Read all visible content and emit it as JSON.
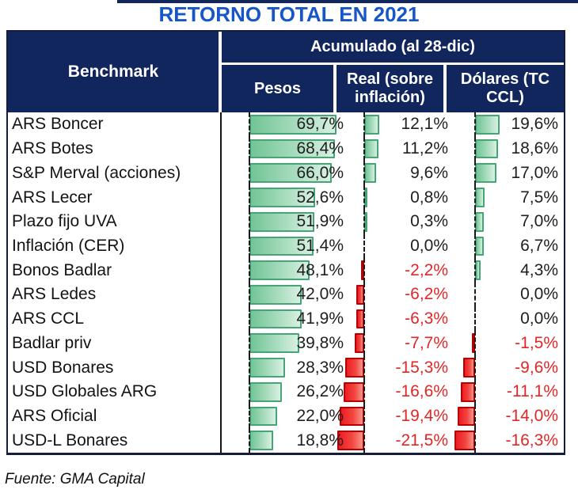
{
  "title": "RETORNO TOTAL EN 2021",
  "source": "Fuente: GMA Capital",
  "colors": {
    "title_blue": "#1656c8",
    "header_navy": "#12265e",
    "positive_bar": "#72c496",
    "positive_bar_border": "#46a577",
    "negative_bar": "#ee1c24",
    "negative_bar_border": "#b40000",
    "negative_text": "#e02728"
  },
  "table": {
    "benchmark_header": "Benchmark",
    "group_header": "Acumulado (al 28-dic)",
    "columns": [
      "Pesos",
      "Real (sobre inflación)",
      "Dólares (TC CCL)"
    ],
    "rows": [
      {
        "name": "ARS Boncer",
        "pesos": "69,7%",
        "real": "12,1%",
        "dolares": "19,6%",
        "pesos_v": 69.7,
        "real_v": 12.1,
        "dolares_v": 19.6
      },
      {
        "name": "ARS Botes",
        "pesos": "68,4%",
        "real": "11,2%",
        "dolares": "18,6%",
        "pesos_v": 68.4,
        "real_v": 11.2,
        "dolares_v": 18.6
      },
      {
        "name": "S&P Merval (acciones)",
        "pesos": "66,0%",
        "real": "9,6%",
        "dolares": "17,0%",
        "pesos_v": 66.0,
        "real_v": 9.6,
        "dolares_v": 17.0
      },
      {
        "name": "ARS Lecer",
        "pesos": "52,6%",
        "real": "0,8%",
        "dolares": "7,5%",
        "pesos_v": 52.6,
        "real_v": 0.8,
        "dolares_v": 7.5
      },
      {
        "name": "Plazo fijo UVA",
        "pesos": "51,9%",
        "real": "0,3%",
        "dolares": "7,0%",
        "pesos_v": 51.9,
        "real_v": 0.3,
        "dolares_v": 7.0
      },
      {
        "name": "Inflación (CER)",
        "pesos": "51,4%",
        "real": "0,0%",
        "dolares": "6,7%",
        "pesos_v": 51.4,
        "real_v": 0.0,
        "dolares_v": 6.7
      },
      {
        "name": "Bonos Badlar",
        "pesos": "48,1%",
        "real": "-2,2%",
        "dolares": "4,3%",
        "pesos_v": 48.1,
        "real_v": -2.2,
        "dolares_v": 4.3
      },
      {
        "name": "ARS Ledes",
        "pesos": "42,0%",
        "real": "-6,2%",
        "dolares": "0,0%",
        "pesos_v": 42.0,
        "real_v": -6.2,
        "dolares_v": 0.0
      },
      {
        "name": "ARS CCL",
        "pesos": "41,9%",
        "real": "-6,3%",
        "dolares": "0,0%",
        "pesos_v": 41.9,
        "real_v": -6.3,
        "dolares_v": 0.0
      },
      {
        "name": "Badlar priv",
        "pesos": "39,8%",
        "real": "-7,7%",
        "dolares": "-1,5%",
        "pesos_v": 39.8,
        "real_v": -7.7,
        "dolares_v": -1.5
      },
      {
        "name": "USD Bonares",
        "pesos": "28,3%",
        "real": "-15,3%",
        "dolares": "-9,6%",
        "pesos_v": 28.3,
        "real_v": -15.3,
        "dolares_v": -9.6
      },
      {
        "name": "USD Globales ARG",
        "pesos": "26,2%",
        "real": "-16,6%",
        "dolares": "-11,1%",
        "pesos_v": 26.2,
        "real_v": -16.6,
        "dolares_v": -11.1
      },
      {
        "name": "ARS Oficial",
        "pesos": "22,0%",
        "real": "-19,4%",
        "dolares": "-14,0%",
        "pesos_v": 22.0,
        "real_v": -19.4,
        "dolares_v": -14.0
      },
      {
        "name": "USD-L Bonares",
        "pesos": "18,8%",
        "real": "-21,5%",
        "dolares": "-16,3%",
        "pesos_v": 18.8,
        "real_v": -21.5,
        "dolares_v": -16.3
      }
    ]
  },
  "chart_data": {
    "type": "table",
    "title": "RETORNO TOTAL EN 2021",
    "row_header": "Benchmark",
    "group_header": "Acumulado (al 28-dic)",
    "columns": [
      "Pesos",
      "Real (sobre inflación)",
      "Dólares (TC CCL)"
    ],
    "categories": [
      "ARS Boncer",
      "ARS Botes",
      "S&P Merval (acciones)",
      "ARS Lecer",
      "Plazo fijo UVA",
      "Inflación (CER)",
      "Bonos Badlar",
      "ARS Ledes",
      "ARS CCL",
      "Badlar priv",
      "USD Bonares",
      "USD Globales ARG",
      "ARS Oficial",
      "USD-L Bonares"
    ],
    "series": [
      {
        "name": "Pesos",
        "values": [
          69.7,
          68.4,
          66.0,
          52.6,
          51.9,
          51.4,
          48.1,
          42.0,
          41.9,
          39.8,
          28.3,
          26.2,
          22.0,
          18.8
        ]
      },
      {
        "name": "Real (sobre inflación)",
        "values": [
          12.1,
          11.2,
          9.6,
          0.8,
          0.3,
          0.0,
          -2.2,
          -6.2,
          -6.3,
          -7.7,
          -15.3,
          -16.6,
          -19.4,
          -21.5
        ]
      },
      {
        "name": "Dólares (TC CCL)",
        "values": [
          19.6,
          18.6,
          17.0,
          7.5,
          7.0,
          6.7,
          4.3,
          0.0,
          0.0,
          -1.5,
          -9.6,
          -11.1,
          -14.0,
          -16.3
        ]
      }
    ],
    "value_unit": "%",
    "bars": {
      "positive_color": "#72c496",
      "negative_color": "#ee1c24",
      "axis": "left edge of each column, negatives extend left"
    },
    "source": "Fuente: GMA Capital"
  }
}
